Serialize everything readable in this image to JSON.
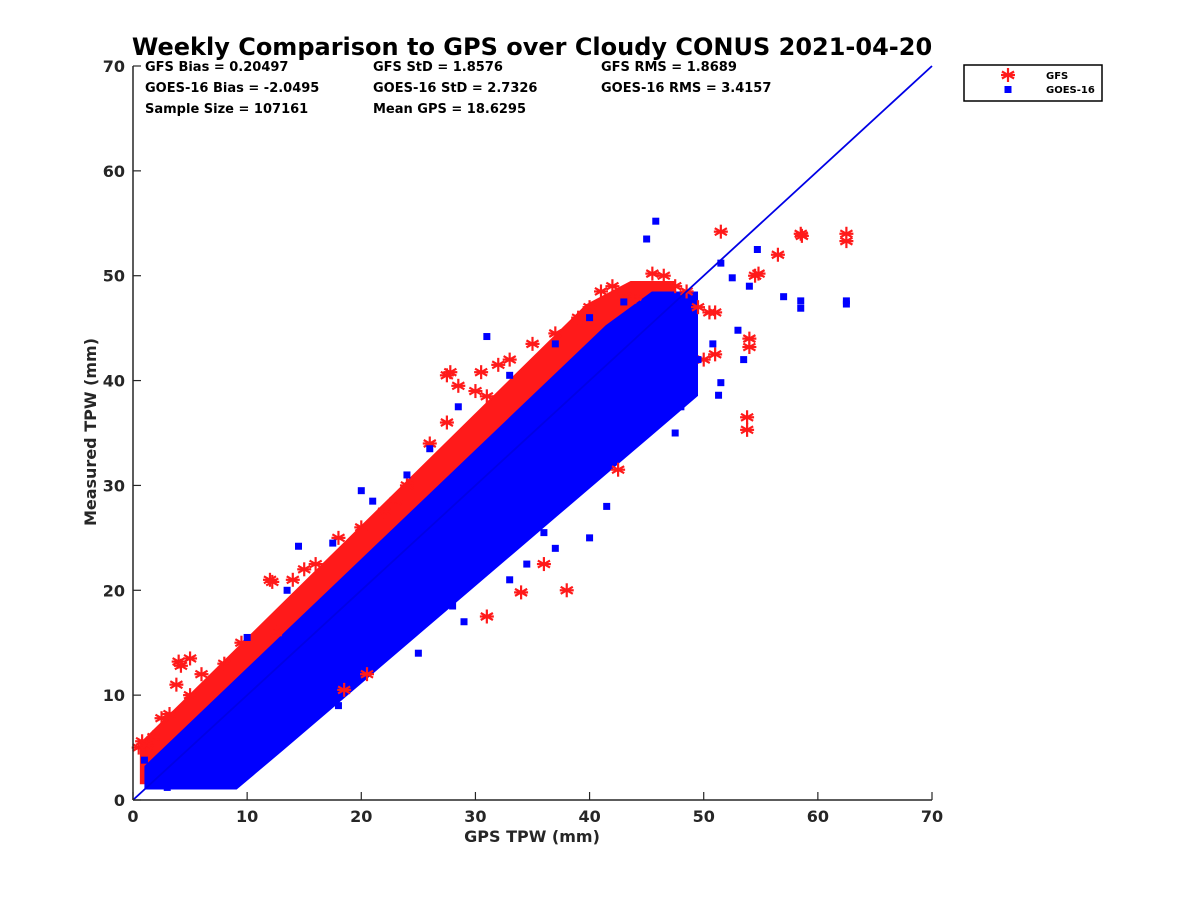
{
  "chart_data": {
    "type": "scatter",
    "title": "Weekly Comparison to GPS over Cloudy CONUS 2021-04-20",
    "xlabel": "GPS TPW (mm)",
    "ylabel": "Measured TPW (mm)",
    "xlim": [
      0,
      70
    ],
    "ylim": [
      0,
      70
    ],
    "xticks": [
      "0",
      "10",
      "20",
      "30",
      "40",
      "50",
      "60",
      "70"
    ],
    "yticks": [
      "0",
      "10",
      "20",
      "30",
      "40",
      "50",
      "60",
      "70"
    ],
    "grid": false,
    "legend_position": "outside top-right",
    "reference_line": {
      "x": [
        0,
        70
      ],
      "y": [
        0,
        70
      ],
      "color": "#0000e6"
    },
    "stats": {
      "gfs_bias": "GFS Bias = 0.20497",
      "gfs_std": "GFS StD = 1.8576",
      "gfs_rms": "GFS RMS = 1.8689",
      "goes_bias": "GOES-16 Bias = -2.0495",
      "goes_std": "GOES-16 StD = 2.7326",
      "goes_rms": "GOES-16 RMS = 3.4157",
      "sample_size": "Sample Size = 107161",
      "mean_gps": "Mean GPS = 18.6295"
    },
    "series": [
      {
        "name": "GFS",
        "marker": "asterisk",
        "color": "#ff1a1a",
        "points": [
          [
            0.5,
            5.0
          ],
          [
            0.8,
            5.6
          ],
          [
            1.2,
            5.2
          ],
          [
            1.8,
            6.0
          ],
          [
            2.5,
            7.8
          ],
          [
            3.2,
            8.2
          ],
          [
            3.8,
            11.0
          ],
          [
            4.2,
            12.8
          ],
          [
            4.0,
            13.2
          ],
          [
            5.0,
            10.0
          ],
          [
            6.0,
            12.0
          ],
          [
            8.0,
            13.0
          ],
          [
            9.5,
            15.0
          ],
          [
            12.0,
            21.0
          ],
          [
            12.2,
            20.8
          ],
          [
            14.0,
            21.0
          ],
          [
            15.0,
            22.0
          ],
          [
            18.0,
            25.0
          ],
          [
            20.0,
            26.0
          ],
          [
            22.0,
            27.5
          ],
          [
            23.0,
            28.5
          ],
          [
            24.0,
            30.0
          ],
          [
            26.0,
            34.0
          ],
          [
            27.5,
            36.0
          ],
          [
            27.5,
            40.5
          ],
          [
            27.8,
            40.8
          ],
          [
            28.5,
            39.5
          ],
          [
            30.0,
            39.0
          ],
          [
            30.5,
            40.8
          ],
          [
            31.0,
            38.5
          ],
          [
            32.0,
            41.5
          ],
          [
            33.0,
            42.0
          ],
          [
            35.0,
            43.5
          ],
          [
            37.0,
            44.5
          ],
          [
            39.0,
            46.0
          ],
          [
            40.0,
            47.0
          ],
          [
            41.0,
            48.5
          ],
          [
            42.0,
            49.0
          ],
          [
            43.0,
            48.0
          ],
          [
            44.0,
            48.0
          ],
          [
            45.5,
            50.2
          ],
          [
            46.5,
            50.0
          ],
          [
            47.5,
            49.0
          ],
          [
            48.5,
            48.5
          ],
          [
            49.5,
            47.0
          ],
          [
            50.5,
            46.5
          ],
          [
            51.0,
            46.5
          ],
          [
            51.5,
            54.2
          ],
          [
            54.5,
            50.0
          ],
          [
            54.8,
            50.2
          ],
          [
            56.5,
            52.0
          ],
          [
            58.5,
            54.0
          ],
          [
            58.6,
            53.8
          ],
          [
            62.5,
            53.3
          ],
          [
            62.5,
            54.0
          ],
          [
            53.8,
            36.5
          ],
          [
            53.8,
            35.3
          ],
          [
            54.0,
            44.0
          ],
          [
            54.0,
            43.2
          ],
          [
            50.0,
            42.0
          ],
          [
            51.0,
            42.5
          ],
          [
            18.5,
            10.5
          ],
          [
            20.5,
            12.0
          ],
          [
            31.0,
            17.5
          ],
          [
            34.0,
            19.8
          ],
          [
            38.0,
            20.0
          ],
          [
            36.0,
            22.5
          ],
          [
            42.5,
            31.5
          ],
          [
            5.0,
            13.5
          ],
          [
            12.5,
            16.0
          ],
          [
            16.0,
            22.5
          ]
        ]
      },
      {
        "name": "GOES-16",
        "marker": "square",
        "color": "#0000ff",
        "points": [
          [
            45.8,
            55.2
          ],
          [
            45.0,
            53.5
          ],
          [
            51.5,
            51.2
          ],
          [
            54.7,
            52.5
          ],
          [
            52.5,
            49.8
          ],
          [
            54.0,
            49.0
          ],
          [
            57.0,
            48.0
          ],
          [
            58.5,
            47.6
          ],
          [
            58.5,
            46.9
          ],
          [
            62.5,
            47.6
          ],
          [
            62.5,
            47.3
          ],
          [
            50.8,
            43.5
          ],
          [
            53.0,
            44.8
          ],
          [
            53.5,
            42.0
          ],
          [
            51.5,
            39.8
          ],
          [
            51.3,
            38.6
          ],
          [
            31.0,
            44.2
          ],
          [
            14.5,
            24.2
          ],
          [
            20.0,
            29.5
          ],
          [
            35.5,
            27.5
          ],
          [
            36.0,
            25.5
          ],
          [
            37.0,
            24.0
          ],
          [
            40.0,
            25.0
          ],
          [
            41.5,
            28.0
          ],
          [
            33.0,
            21.0
          ],
          [
            34.5,
            22.5
          ],
          [
            28.0,
            18.5
          ],
          [
            26.0,
            17.5
          ],
          [
            29.0,
            17.0
          ],
          [
            25.0,
            14.0
          ],
          [
            24.0,
            15.5
          ],
          [
            21.0,
            13.5
          ],
          [
            16.5,
            9.0
          ],
          [
            16.0,
            8.0
          ],
          [
            18.0,
            9.0
          ],
          [
            12.0,
            5.0
          ],
          [
            8.0,
            2.5
          ],
          [
            5.0,
            1.5
          ],
          [
            3.0,
            1.2
          ],
          [
            1.5,
            2.5
          ],
          [
            1.0,
            3.8
          ],
          [
            10.0,
            15.5
          ],
          [
            13.5,
            20.0
          ],
          [
            17.5,
            24.5
          ],
          [
            21.0,
            28.5
          ],
          [
            24.0,
            31.0
          ],
          [
            26.0,
            33.5
          ],
          [
            28.5,
            37.5
          ],
          [
            33.0,
            40.5
          ],
          [
            37.0,
            43.5
          ],
          [
            40.0,
            46.0
          ],
          [
            43.0,
            47.5
          ],
          [
            46.0,
            46.5
          ],
          [
            48.5,
            44.0
          ],
          [
            49.5,
            42.0
          ],
          [
            48.0,
            37.5
          ],
          [
            47.5,
            35.0
          ]
        ]
      }
    ]
  }
}
